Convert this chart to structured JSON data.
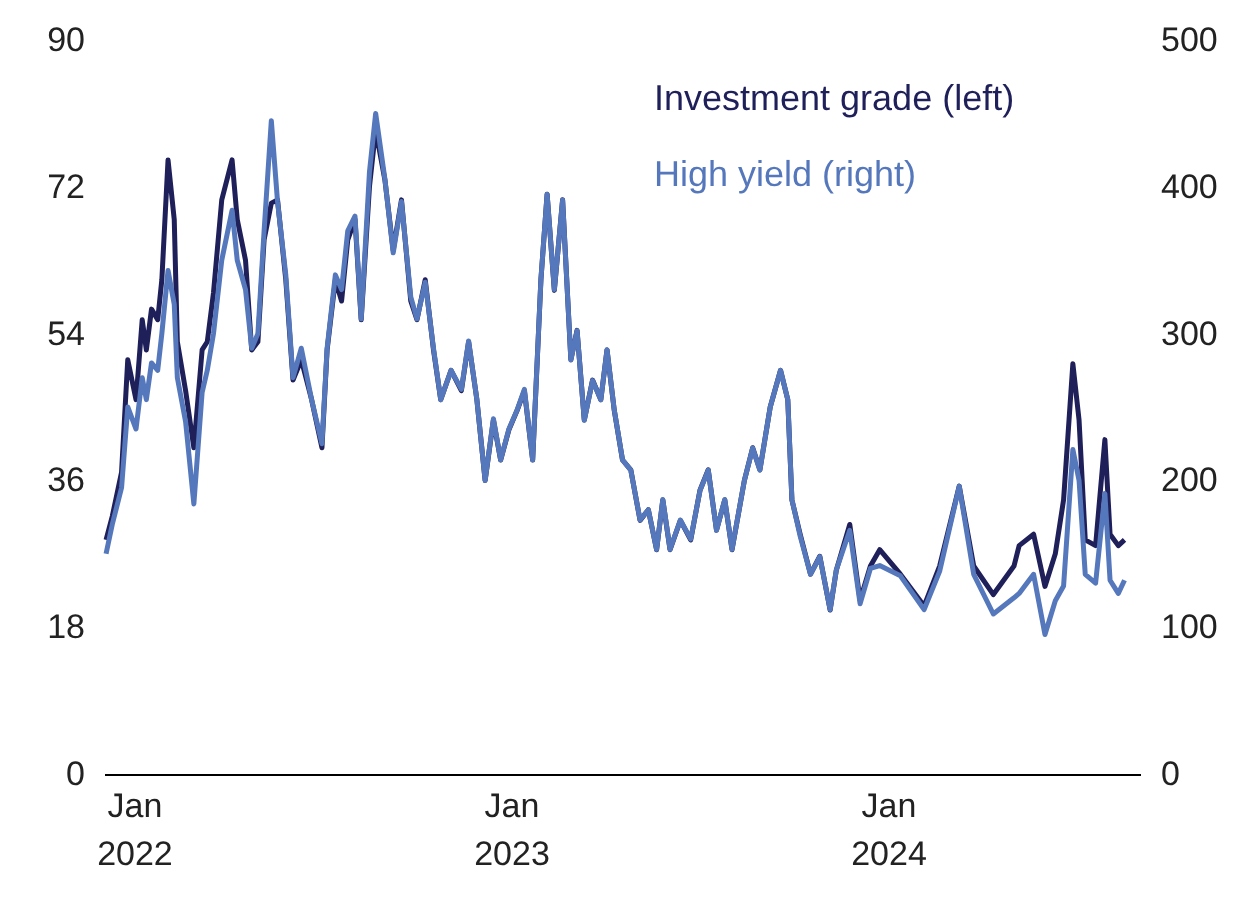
{
  "chart_data": {
    "type": "line",
    "x": [
      "2021-12-05",
      "2021-12-11",
      "2021-12-20",
      "2021-12-26",
      "2022-01-03",
      "2022-01-09",
      "2022-01-13",
      "2022-01-18",
      "2022-01-24",
      "2022-01-28",
      "2022-02-03",
      "2022-02-09",
      "2022-02-12",
      "2022-02-20",
      "2022-02-28",
      "2022-03-08",
      "2022-03-13",
      "2022-03-19",
      "2022-03-27",
      "2022-04-06",
      "2022-04-11",
      "2022-04-19",
      "2022-04-25",
      "2022-05-01",
      "2022-05-07",
      "2022-05-14",
      "2022-05-20",
      "2022-05-28",
      "2022-06-04",
      "2022-06-12",
      "2022-06-22",
      "2022-07-02",
      "2022-07-07",
      "2022-07-15",
      "2022-07-21",
      "2022-07-27",
      "2022-08-03",
      "2022-08-09",
      "2022-08-17",
      "2022-08-23",
      "2022-09-01",
      "2022-09-09",
      "2022-09-17",
      "2022-09-26",
      "2022-10-02",
      "2022-10-10",
      "2022-10-18",
      "2022-10-25",
      "2022-11-04",
      "2022-11-14",
      "2022-11-21",
      "2022-11-29",
      "2022-12-07",
      "2022-12-15",
      "2022-12-22",
      "2022-12-30",
      "2023-01-07",
      "2023-01-14",
      "2023-01-22",
      "2023-01-30",
      "2023-02-05",
      "2023-02-12",
      "2023-02-20",
      "2023-02-28",
      "2023-03-06",
      "2023-03-13",
      "2023-03-21",
      "2023-03-29",
      "2023-04-04",
      "2023-04-11",
      "2023-04-19",
      "2023-04-27",
      "2023-05-06",
      "2023-05-14",
      "2023-05-22",
      "2023-05-28",
      "2023-06-04",
      "2023-06-14",
      "2023-06-24",
      "2023-07-03",
      "2023-07-11",
      "2023-07-19",
      "2023-07-27",
      "2023-08-03",
      "2023-08-15",
      "2023-08-23",
      "2023-08-30",
      "2023-09-09",
      "2023-09-19",
      "2023-09-26",
      "2023-09-30",
      "2023-10-08",
      "2023-10-18",
      "2023-10-27",
      "2023-11-06",
      "2023-11-12",
      "2023-11-25",
      "2023-12-05",
      "2023-12-15",
      "2023-12-24",
      "2024-01-13",
      "2024-02-05",
      "2024-02-20",
      "2024-03-10",
      "2024-03-24",
      "2024-04-12",
      "2024-05-02",
      "2024-05-07",
      "2024-05-21",
      "2024-06-01",
      "2024-06-11",
      "2024-06-19",
      "2024-06-28",
      "2024-07-04",
      "2024-07-10",
      "2024-07-20",
      "2024-07-29",
      "2024-08-03",
      "2024-08-11",
      "2024-08-17"
    ],
    "series": [
      {
        "name": "Investment grade (left)",
        "color": "#1f1f5a",
        "axis": "y",
        "values": [
          28.7,
          31.6,
          37,
          50.8,
          45.9,
          55.7,
          52,
          57,
          55.7,
          60.6,
          75.3,
          68,
          53,
          47,
          40,
          52,
          53,
          59,
          70.4,
          75.3,
          68,
          63,
          52,
          53,
          65.5,
          70,
          70.4,
          60.6,
          48.3,
          50.8,
          45.9,
          40,
          52,
          60.6,
          58,
          65.5,
          68,
          55.7,
          72,
          79,
          72.8,
          64.2,
          70.4,
          58,
          55.7,
          60.6,
          52,
          45.9,
          49.5,
          47,
          53,
          45.9,
          36,
          43.4,
          38.5,
          42.2,
          44.6,
          47,
          38.5,
          60.6,
          71.1,
          59.3,
          70.4,
          50.8,
          54.4,
          43.4,
          48.3,
          45.9,
          52,
          44.6,
          38.5,
          37.3,
          31.1,
          32.4,
          27.5,
          33.6,
          27.5,
          31.1,
          28.7,
          34.8,
          37.3,
          29.9,
          33.6,
          27.5,
          36,
          40,
          37.3,
          45,
          49.5,
          45.9,
          33.6,
          29.4,
          24.5,
          26.7,
          20.1,
          25,
          30.6,
          21.3,
          25.5,
          27.5,
          24.5,
          20.6,
          25.5,
          35.3,
          25.5,
          22,
          25.5,
          28,
          29.4,
          23,
          27,
          33.6,
          50.3,
          43.4,
          28.7,
          28,
          41,
          29.4,
          28,
          28.7
        ]
      },
      {
        "name": "High yield (right)",
        "color": "#5577bb",
        "axis": "y2",
        "values": [
          150,
          170,
          195,
          250,
          235,
          270,
          255,
          280,
          275,
          300,
          343,
          320,
          270,
          240,
          184,
          260,
          275,
          300,
          350,
          384,
          350,
          330,
          290,
          300,
          370,
          445,
          390,
          340,
          270,
          290,
          255,
          225,
          290,
          340,
          330,
          370,
          380,
          310,
          410,
          450,
          405,
          355,
          390,
          325,
          310,
          335,
          290,
          255,
          275,
          262,
          295,
          255,
          200,
          242,
          214,
          235,
          248,
          262,
          214,
          337,
          395,
          330,
          391,
          282,
          302,
          241,
          268,
          255,
          289,
          248,
          214,
          207,
          173,
          180,
          153,
          187,
          153,
          173,
          160,
          193,
          207,
          166,
          187,
          153,
          200,
          222,
          207,
          250,
          275,
          255,
          187,
          162,
          136,
          148,
          112,
          139,
          166,
          116,
          140,
          142,
          135,
          112,
          138,
          196,
          136,
          109,
          120,
          123,
          136,
          95,
          118,
          128,
          221,
          200,
          136,
          130,
          191,
          132,
          123,
          132
        ]
      }
    ],
    "xlim": [
      "2021-12-03",
      "2024-09-01"
    ],
    "xticks": [
      {
        "value": "2022-01-01",
        "label": "Jan 2022"
      },
      {
        "value": "2023-01-01",
        "label": "Jan 2023"
      },
      {
        "value": "2024-01-01",
        "label": "Jan 2024"
      }
    ],
    "ylim": [
      0,
      90
    ],
    "yticks": [
      0,
      18,
      36,
      54,
      72,
      90
    ],
    "y2lim": [
      0,
      500
    ],
    "y2ticks": [
      0,
      100,
      200,
      300,
      400,
      500
    ],
    "grid": false,
    "legend": "top right",
    "marker": "none",
    "line_style": "solid"
  }
}
